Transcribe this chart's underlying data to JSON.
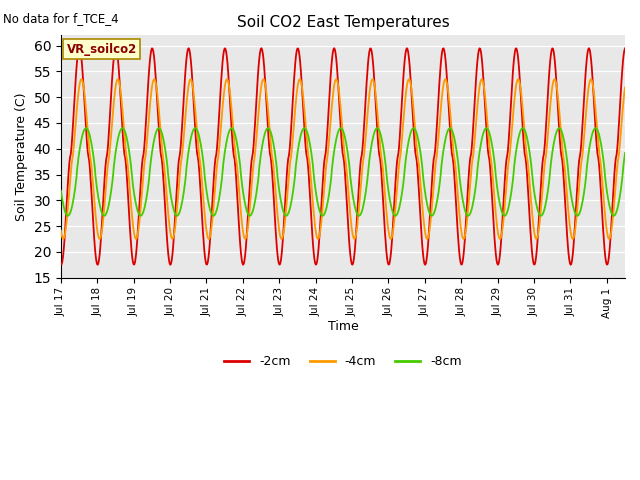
{
  "title": "Soil CO2 East Temperatures",
  "no_data_label": "No data for f_TCE_4",
  "vr_label": "VR_soilco2",
  "ylabel": "Soil Temperature (C)",
  "xlabel": "Time",
  "ylim": [
    15,
    62
  ],
  "yticks": [
    15,
    20,
    25,
    30,
    35,
    40,
    45,
    50,
    55,
    60
  ],
  "bg_color": "#e8e8e8",
  "line_colors": {
    "-2cm": "#dd0000",
    "-4cm": "#ff9900",
    "-8cm": "#44cc00"
  },
  "legend_entries": [
    "-2cm",
    "-4cm",
    "-8cm"
  ],
  "num_days": 15.5,
  "num_points": 800,
  "amp_2cm": 21.0,
  "mean_2cm": 38.5,
  "amp_4cm": 15.5,
  "mean_4cm": 38.0,
  "amp_8cm": 8.5,
  "mean_8cm": 35.5,
  "phase_lag_4cm": 0.35,
  "phase_lag_8cm": 1.15
}
